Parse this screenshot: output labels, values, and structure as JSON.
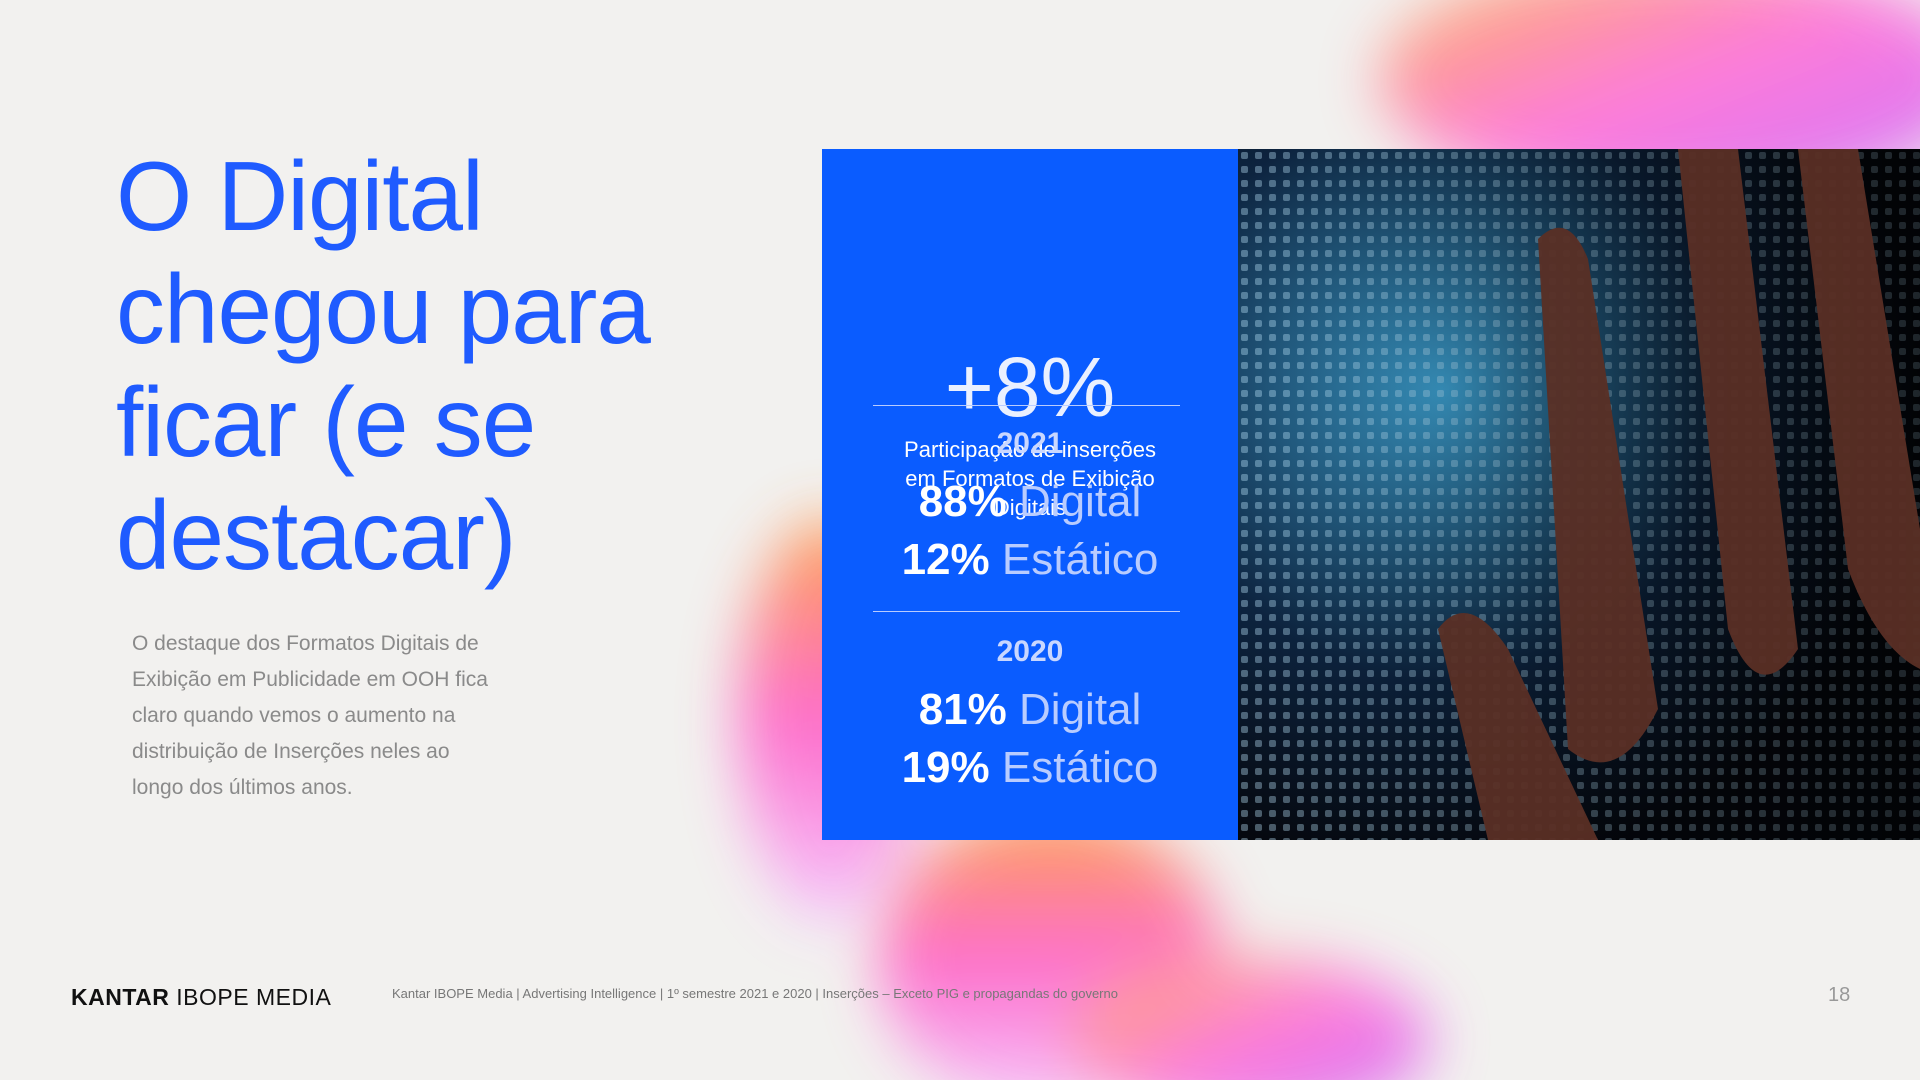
{
  "title": {
    "lines": [
      "O Digital",
      "chegou para",
      "ficar (e se",
      "destacar)"
    ]
  },
  "body": "O destaque dos Formatos Digitais de Exibição em Publicidade em OOH fica claro quando vemos o aumento na distribuição de Inserções neles ao longo dos últimos anos.",
  "highlight": {
    "value": "+8%",
    "caption": "Participação de inserções em Formatos de Exibição Digitais"
  },
  "years": [
    {
      "year": "2021",
      "rows": [
        {
          "share": "88%",
          "label": "Digital"
        },
        {
          "share": "12%",
          "label": "Estático"
        }
      ]
    },
    {
      "year": "2020",
      "rows": [
        {
          "share": "81%",
          "label": "Digital"
        },
        {
          "share": "19%",
          "label": "Estático"
        }
      ]
    }
  ],
  "footer": {
    "brand_bold": "KANTAR",
    "brand_rest": "IBOPE MEDIA",
    "source": "Kantar IBOPE Media | Advertising Intelligence | 1º semestre 2021 e 2020 | Inserções – Exceto PIG e propagandas do governo",
    "page": "18"
  }
}
